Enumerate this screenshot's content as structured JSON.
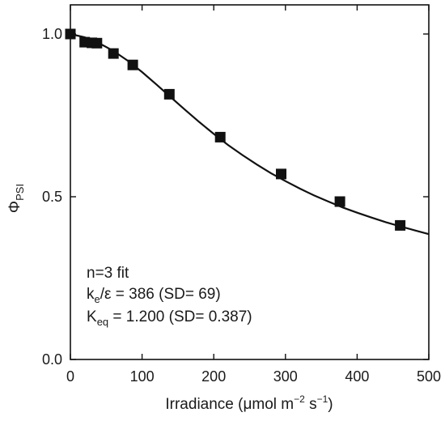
{
  "chart_data": {
    "type": "scatter",
    "xlabel": {
      "main": "Irradiance (μmol m",
      "sup1": "−2",
      "mid": " s",
      "sup2": "−1",
      "end": ")"
    },
    "ylabel": {
      "main": "Φ",
      "sub": "PSI"
    },
    "xlim": [
      0,
      500
    ],
    "ylim": [
      0,
      1.1
    ],
    "xticks": [
      0,
      100,
      200,
      300,
      400,
      500
    ],
    "xtick_labels": [
      "0",
      "100",
      "200",
      "300",
      "400",
      "500"
    ],
    "yticks": [
      0.0,
      0.5,
      1.0
    ],
    "ytick_labels": [
      "0.0",
      "0.5",
      "1.0"
    ],
    "series": [
      {
        "marker": "square",
        "color": "#111111",
        "x": [
          0,
          20,
          30,
          37,
          60,
          87,
          138,
          209,
          294,
          376,
          460
        ],
        "y": [
          1.0,
          0.975,
          0.973,
          0.972,
          0.94,
          0.905,
          0.815,
          0.683,
          0.57,
          0.485,
          0.412
        ]
      },
      {
        "marker": "none",
        "line": "solid",
        "color": "#111111",
        "x": [
          0,
          20,
          40,
          60,
          80,
          100,
          120,
          140,
          160,
          180,
          200,
          220,
          240,
          260,
          280,
          300,
          320,
          340,
          360,
          380,
          400,
          420,
          440,
          460,
          480,
          500
        ],
        "y": [
          1.0,
          0.99,
          0.972,
          0.948,
          0.918,
          0.883,
          0.845,
          0.806,
          0.767,
          0.729,
          0.693,
          0.659,
          0.628,
          0.599,
          0.572,
          0.548,
          0.525,
          0.504,
          0.485,
          0.467,
          0.451,
          0.436,
          0.422,
          0.409,
          0.397,
          0.385
        ]
      }
    ],
    "annotations": {
      "line1": "n=3 fit",
      "line2": {
        "main": "k",
        "sub": "e",
        "rest": "/ε = 386 (SD= 69)"
      },
      "line3": {
        "main": "K",
        "sub": "eq",
        "rest": " = 1.200 (SD= 0.387)"
      }
    }
  }
}
